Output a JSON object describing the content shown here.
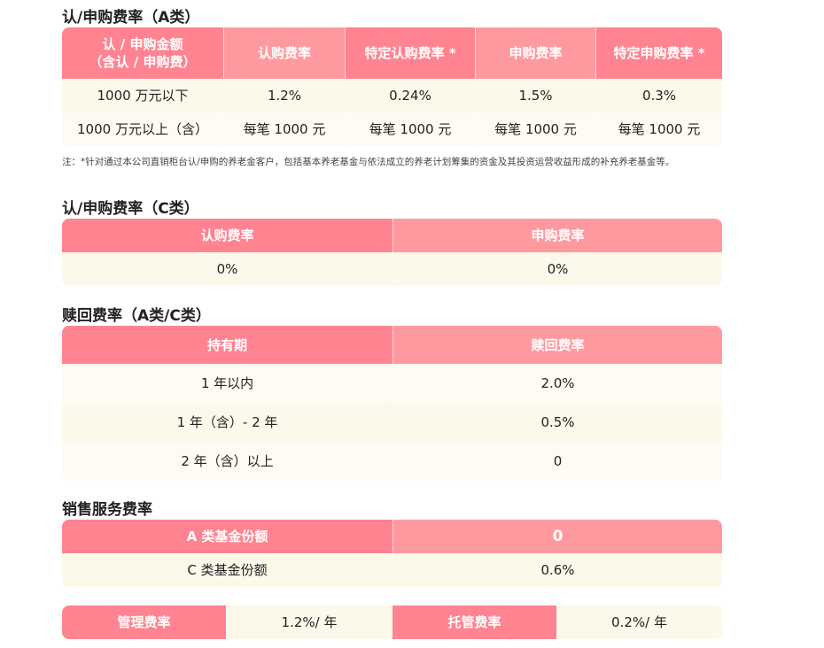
{
  "section_a": {
    "title": "认/申购费率（A类）",
    "headers": [
      "认 / 申购金额\n（含认 / 申购费）",
      "认购费率",
      "特定认购费率 *",
      "申购费率",
      "特定申购费率 *"
    ],
    "rows": [
      [
        "1000 万元以下",
        "1.2%",
        "0.24%",
        "1.5%",
        "0.3%"
      ],
      [
        "1000 万元以上（含）",
        "每笔 1000 元",
        "每笔 1000 元",
        "每笔 1000 元",
        "每笔 1000 元"
      ]
    ],
    "note": "注：*针对通过本公司直销柜台认/申购的养老金客户，包括基本养老基金与依法成立的养老计划筹集的资金及其投资运营收益形成的补充养老基金等。"
  },
  "section_c": {
    "title": "认/申购费率（C类）",
    "headers": [
      "认购费率",
      "申购费率"
    ],
    "rows": [
      [
        "0%",
        "0%"
      ]
    ]
  },
  "redemption": {
    "title": "赎回费率（A类/C类）",
    "headers": [
      "持有期",
      "赎回费率"
    ],
    "rows": [
      [
        "1 年以内",
        "2.0%"
      ],
      [
        "1 年（含）- 2 年",
        "0.5%"
      ],
      [
        "2 年（含）以上",
        "0"
      ]
    ]
  },
  "sales_service": {
    "title": "销售服务费率",
    "rows": [
      [
        "A 类基金份额",
        "0"
      ],
      [
        "C 类基金份额",
        "0.6%"
      ]
    ]
  },
  "other_fees": {
    "management_label": "管理费率",
    "management_value": "1.2%/ 年",
    "custody_label": "托管费率",
    "custody_value": "0.2%/ 年"
  },
  "colors": {
    "header_dark": "#ff8390",
    "header_light": "#ff99a0",
    "row_bg": "#fcf8ea"
  }
}
